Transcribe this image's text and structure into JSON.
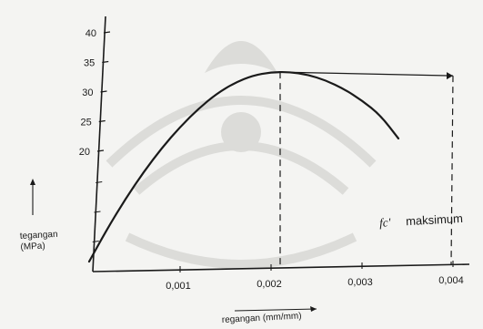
{
  "chart_data": {
    "type": "line",
    "title": "",
    "xlabel": "regangan (mm/mm)",
    "ylabel": "tegangan (MPa)",
    "xlim": [
      0,
      0.004
    ],
    "ylim": [
      0,
      40
    ],
    "x_ticks": [
      "0,001",
      "0,002",
      "0,003",
      "0,004"
    ],
    "y_ticks": [
      "20",
      "25",
      "30",
      "35",
      "40"
    ],
    "grid": false,
    "series": [
      {
        "x": [
          0.0,
          0.0002,
          0.0004,
          0.0006,
          0.0008,
          0.001,
          0.0012,
          0.0014,
          0.0016,
          0.0018,
          0.002,
          0.0022,
          0.0024,
          0.0026,
          0.0028,
          0.003,
          0.0032,
          0.0034
        ],
        "y": [
          2.0,
          7.5,
          12.5,
          17.0,
          21.0,
          24.5,
          27.5,
          30.0,
          31.8,
          33.0,
          33.5,
          33.5,
          33.0,
          32.0,
          30.5,
          28.5,
          26.0,
          22.0
        ]
      }
    ],
    "annotations": {
      "peak_label_symbol": "fc'",
      "peak_label_text": "maksimum",
      "peak_stress": 33.5,
      "peak_strain": 0.0021,
      "max_strain": 0.004
    }
  },
  "colors": {
    "ink": "#1a1a1a",
    "watermark": "#d9d9d6",
    "background": "#f4f4f2"
  }
}
